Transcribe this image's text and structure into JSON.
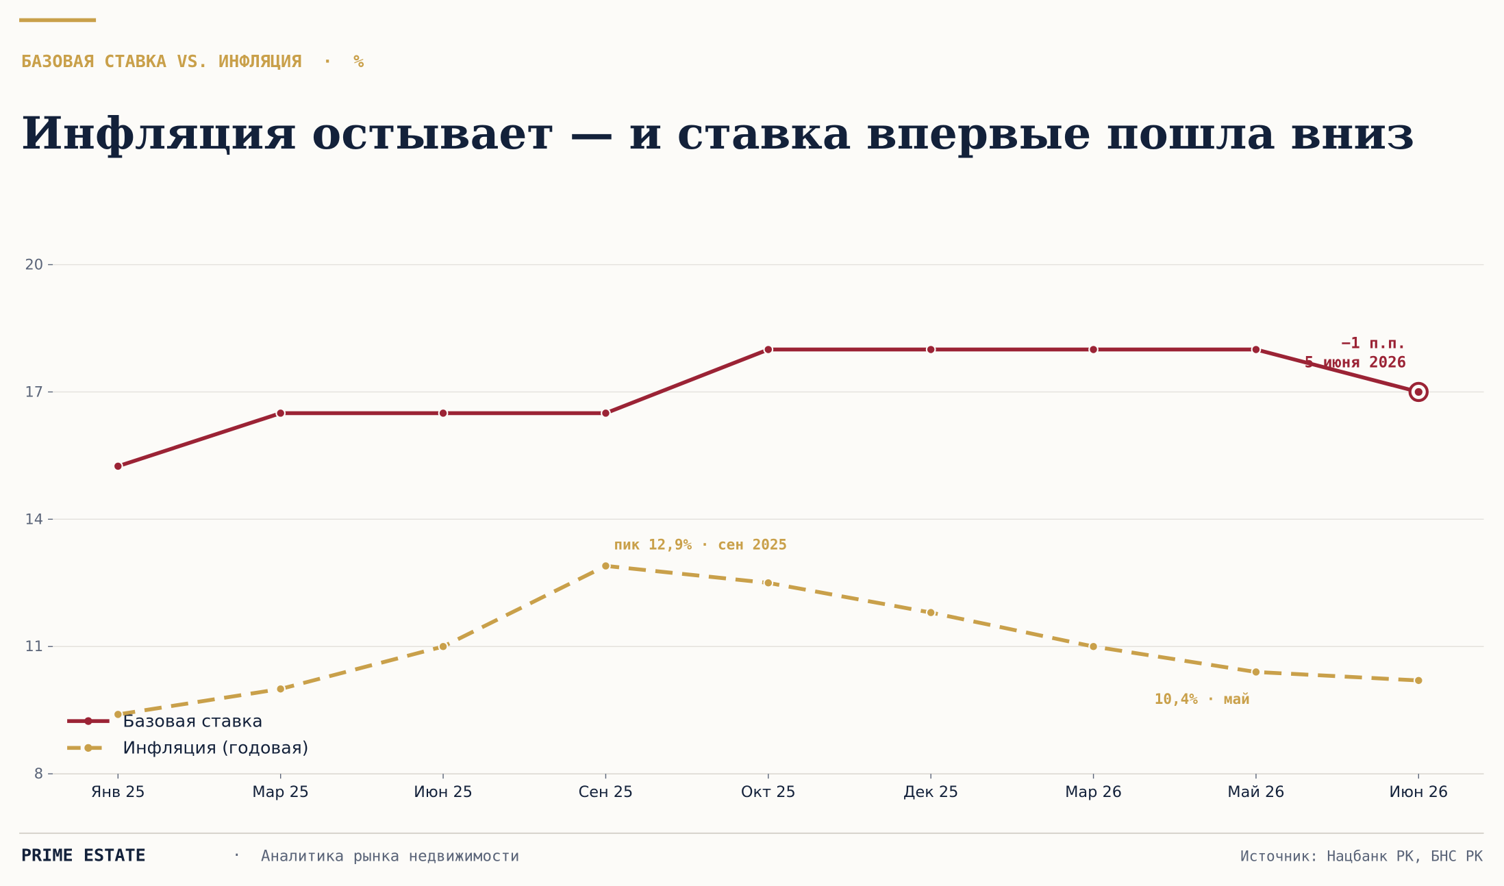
{
  "chart_data": {
    "type": "line",
    "kicker": "БАЗОВАЯ СТАВКА VS. ИНФЛЯЦИЯ  ·  %",
    "title": "Инфляция остывает — и ставка впервые пошла вниз",
    "categories": [
      "Янв 25",
      "Мар 25",
      "Июн 25",
      "Сен 25",
      "Окт 25",
      "Дек 25",
      "Мар 26",
      "Май 26",
      "Июн 26"
    ],
    "series": [
      {
        "name": "Базовая ставка",
        "color": "#9b2335",
        "style": "solid",
        "values": [
          15.25,
          16.5,
          16.5,
          16.5,
          18,
          18,
          18,
          18,
          17
        ]
      },
      {
        "name": "Инфляция (годовая)",
        "color": "#c9a04a",
        "style": "dashed",
        "values": [
          9.4,
          10.0,
          11.0,
          12.9,
          12.5,
          11.8,
          11.0,
          10.4,
          10.2
        ]
      }
    ],
    "ylim": [
      8,
      20
    ],
    "yticks": [
      8,
      11,
      14,
      17,
      20
    ],
    "grid": true,
    "legend": "lower left",
    "annotations": [
      "−1 п.п.",
      "5 июня 2026",
      "пик 12,9% · сен 2025",
      "10,4% · май"
    ]
  },
  "footer": {
    "brand": "PRIME ESTATE",
    "separator": "·",
    "tagline": "Аналитика рынка недвижимости",
    "source": "Источник: Нацбанк РК, БНС РК"
  }
}
